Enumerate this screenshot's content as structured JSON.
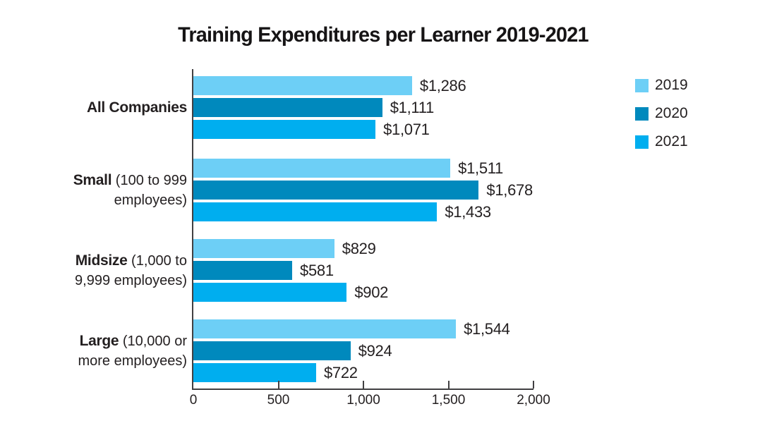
{
  "title": "Training Expenditures per Learner 2019-2021",
  "chart_data": {
    "type": "bar",
    "orientation": "horizontal",
    "title": "Training Expenditures per Learner 2019-2021",
    "xlim": [
      0,
      2000
    ],
    "grid": false,
    "legend_position": "top-right",
    "axis_color": "#414042",
    "text_color": "#231f20",
    "x_ticks": [
      {
        "value": 0,
        "label": "0"
      },
      {
        "value": 500,
        "label": "500"
      },
      {
        "value": 1000,
        "label": "1,000"
      },
      {
        "value": 1500,
        "label": "1,500"
      },
      {
        "value": 2000,
        "label": "2,000"
      }
    ],
    "categories": [
      "All Companies",
      "Small (100 to 999 employees)",
      "Midsize (1,000 to 9,999 employees)",
      "Large (10,000 or more employees)"
    ],
    "category_label_lines": [
      {
        "lines": [
          [
            {
              "t": "All Companies",
              "b": true
            }
          ]
        ]
      },
      {
        "lines": [
          [
            {
              "t": "Small",
              "b": true
            },
            {
              "t": " (100 to 999",
              "b": false
            }
          ],
          [
            {
              "t": "employees)",
              "b": false
            }
          ]
        ]
      },
      {
        "lines": [
          [
            {
              "t": "Midsize",
              "b": true
            },
            {
              "t": " (1,000 to",
              "b": false
            }
          ],
          [
            {
              "t": "9,999 employees)",
              "b": false
            }
          ]
        ]
      },
      {
        "lines": [
          [
            {
              "t": "Large",
              "b": true
            },
            {
              "t": " (10,000 or",
              "b": false
            }
          ],
          [
            {
              "t": "more employees)",
              "b": false
            }
          ]
        ]
      }
    ],
    "series": [
      {
        "name": "2019",
        "color": "#6DCFF6",
        "values": [
          1286,
          1511,
          829,
          1544
        ],
        "labels": [
          "$1,286",
          "$1,511",
          "$829",
          "$1,544"
        ]
      },
      {
        "name": "2020",
        "color": "#0089BD",
        "values": [
          1111,
          1678,
          581,
          924
        ],
        "labels": [
          "$1,111",
          "$1,678",
          "$581",
          "$924"
        ]
      },
      {
        "name": "2021",
        "color": "#00AEEF",
        "values": [
          1071,
          1433,
          902,
          722
        ],
        "labels": [
          "$1,071",
          "$1,433",
          "$902",
          "$722"
        ]
      }
    ]
  }
}
